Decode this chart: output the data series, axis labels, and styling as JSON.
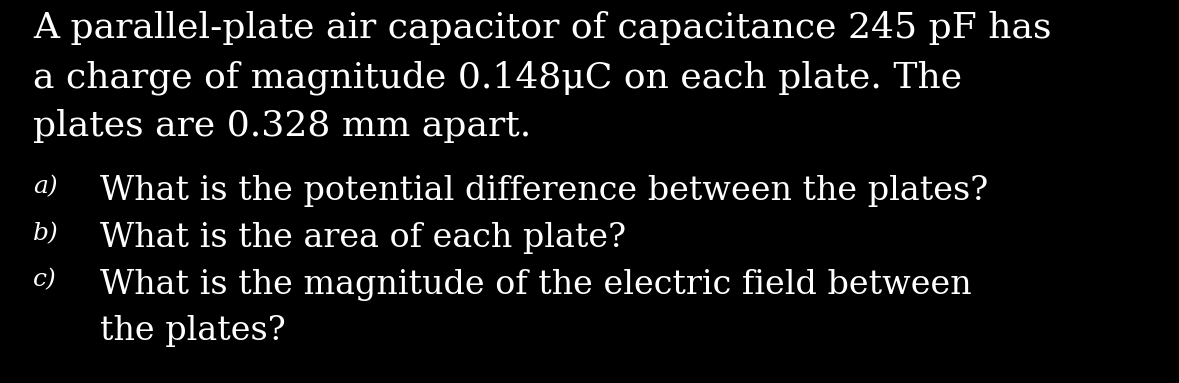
{
  "background_color": "#000000",
  "text_color": "#ffffff",
  "font_family": "serif",
  "intro_line1": "A parallel-plate air capacitor of capacitance 245 pF has",
  "intro_line2": "a charge of magnitude 0.148μC on each plate. The",
  "intro_line3": "plates are 0.328 mm apart.",
  "q_a_label": "a)",
  "q_a_text": "What is the potential difference between the plates?",
  "q_b_label": "b)",
  "q_b_text": "What is the area of each plate?",
  "q_c_label": "c)",
  "q_c_text1": "What is the magnitude of the electric field between",
  "q_c_text2": "the plates?",
  "intro_fontsize": 26,
  "question_fontsize": 24,
  "label_fontsize": 18,
  "figwidth": 11.79,
  "figheight": 3.83,
  "dpi": 100
}
